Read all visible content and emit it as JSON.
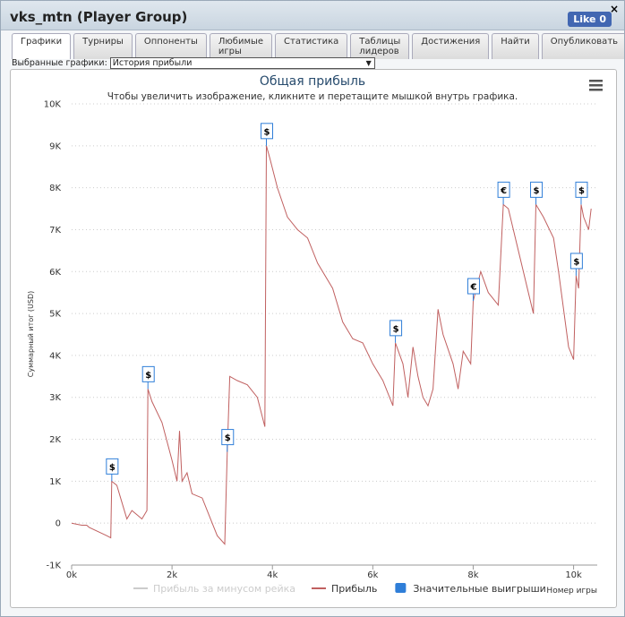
{
  "window": {
    "title": "vks_mtn (Player Group)",
    "close": "×",
    "like": "Like 0"
  },
  "tabs": [
    "Графики",
    "Турниры",
    "Оппоненты",
    "Любимые игры",
    "Статистика",
    "Таблицы лидеров",
    "Достижения",
    "Найти",
    "Опубликовать"
  ],
  "active_tab": 0,
  "selector": {
    "label": "Выбранные графики:",
    "value": "История прибыли"
  },
  "chart_data": {
    "type": "line",
    "title": "Общая прибыль",
    "subtitle": "Чтобы увеличить изображение, кликните и перетащите мышкой внутрь графика.",
    "y_label": "Суммарный итог (USD)",
    "x_label": "Номер игры",
    "grid": true,
    "xlim": [
      0,
      10400
    ],
    "ylim": [
      -1000,
      10000
    ],
    "xticks": [
      {
        "value": 0,
        "label": "0k"
      },
      {
        "value": 2000,
        "label": "2k"
      },
      {
        "value": 4000,
        "label": "4k"
      },
      {
        "value": 6000,
        "label": "6k"
      },
      {
        "value": 8000,
        "label": "8k"
      },
      {
        "value": 10000,
        "label": "10k"
      }
    ],
    "yticks": [
      {
        "value": -1000,
        "label": "-1K"
      },
      0,
      {
        "value": 1000,
        "label": "1K"
      },
      {
        "value": 2000,
        "label": "2K"
      },
      {
        "value": 3000,
        "label": "3K"
      },
      {
        "value": 4000,
        "label": "4K"
      },
      {
        "value": 5000,
        "label": "5K"
      },
      {
        "value": 6000,
        "label": "6K"
      },
      {
        "value": 7000,
        "label": "7K"
      },
      {
        "value": 8000,
        "label": "8K"
      },
      {
        "value": 9000,
        "label": "9K"
      },
      {
        "value": 10000,
        "label": "10K"
      }
    ],
    "series": [
      {
        "name": "Прибыль за минусом рейка",
        "color": "#cccccc",
        "visible": false
      },
      {
        "name": "Прибыль",
        "color": "#c06060",
        "visible": true,
        "x": [
          0,
          200,
          300,
          350,
          700,
          780,
          800,
          900,
          1000,
          1100,
          1200,
          1300,
          1400,
          1500,
          1520,
          1600,
          1800,
          2000,
          2100,
          2150,
          2200,
          2300,
          2400,
          2600,
          2800,
          2900,
          3050,
          3100,
          3150,
          3300,
          3500,
          3700,
          3850,
          3880,
          3950,
          4100,
          4300,
          4500,
          4700,
          4900,
          5200,
          5400,
          5600,
          5800,
          6000,
          6200,
          6400,
          6450,
          6600,
          6700,
          6800,
          6900,
          7000,
          7100,
          7200,
          7300,
          7400,
          7600,
          7700,
          7800,
          7950,
          8000,
          8150,
          8300,
          8500,
          8600,
          8700,
          8900,
          9100,
          9200,
          9250,
          9400,
          9600,
          9700,
          9900,
          10000,
          10050,
          10100,
          10150,
          10200,
          10300,
          10350
        ],
        "values": [
          0,
          -50,
          -50,
          -100,
          -300,
          -350,
          1000,
          900,
          500,
          100,
          300,
          200,
          100,
          300,
          3200,
          2900,
          2400,
          1500,
          1000,
          2200,
          1000,
          1200,
          700,
          600,
          0,
          -300,
          -500,
          1700,
          3500,
          3400,
          3300,
          3000,
          2300,
          9000,
          8700,
          8000,
          7300,
          7000,
          6800,
          6200,
          5600,
          4800,
          4400,
          4300,
          3800,
          3400,
          2800,
          4300,
          3800,
          3000,
          4200,
          3500,
          3000,
          2800,
          3200,
          5100,
          4500,
          3800,
          3200,
          4100,
          3800,
          5300,
          6000,
          5500,
          5200,
          7600,
          7500,
          6500,
          5500,
          5000,
          7600,
          7300,
          6800,
          6000,
          4200,
          3900,
          5900,
          5600,
          7600,
          7300,
          7000,
          7500
        ]
      },
      {
        "name": "Значительные выигрыши",
        "color": "#2f7ed8",
        "visible": true,
        "x": [
          800,
          1520,
          3100,
          3880,
          6450,
          8000,
          8600,
          9250,
          10050,
          10150
        ],
        "values": [
          1000,
          3200,
          1700,
          9000,
          4300,
          5300,
          7600,
          7600,
          5900,
          7600
        ],
        "labels": [
          "$",
          "$",
          "$",
          "$",
          "$",
          "€",
          "€",
          "$",
          "$",
          "$"
        ]
      }
    ]
  }
}
